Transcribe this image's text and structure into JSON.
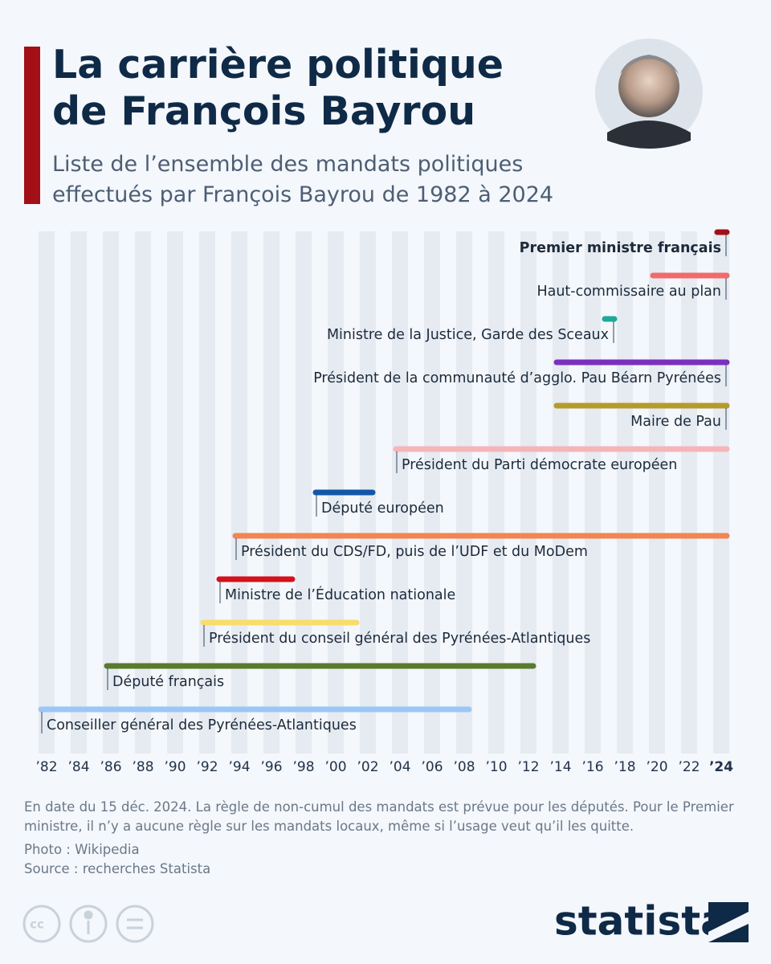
{
  "brand": "statista",
  "chart_data": {
    "type": "timeline",
    "title": "La carrière politique de François Bayrou",
    "subtitle": "Liste de l’ensemble des mandats politiques effectués par François Bayrou de 1982 à 2024",
    "xlim": [
      1981.5,
      2024.5
    ],
    "xticks": [
      {
        "value": 1982,
        "label": "’82"
      },
      {
        "value": 1984,
        "label": "’84"
      },
      {
        "value": 1986,
        "label": "’86"
      },
      {
        "value": 1988,
        "label": "’88"
      },
      {
        "value": 1990,
        "label": "’90"
      },
      {
        "value": 1992,
        "label": "’92"
      },
      {
        "value": 1994,
        "label": "’94"
      },
      {
        "value": 1996,
        "label": "’96"
      },
      {
        "value": 1998,
        "label": "’98"
      },
      {
        "value": 2000,
        "label": "’00"
      },
      {
        "value": 2002,
        "label": "’02"
      },
      {
        "value": 2004,
        "label": "’04"
      },
      {
        "value": 2006,
        "label": "’06"
      },
      {
        "value": 2008,
        "label": "’08"
      },
      {
        "value": 2010,
        "label": "’10"
      },
      {
        "value": 2012,
        "label": "’12"
      },
      {
        "value": 2014,
        "label": "’14"
      },
      {
        "value": 2016,
        "label": "’16"
      },
      {
        "value": 2018,
        "label": "’18"
      },
      {
        "value": 2020,
        "label": "’20"
      },
      {
        "value": 2022,
        "label": "’22"
      },
      {
        "value": 2024,
        "label": "’24"
      }
    ],
    "grid": true,
    "tasks": [
      {
        "name": "Premier ministre français",
        "start": 2023.6,
        "end": 2024.5,
        "color": "#a30f17"
      },
      {
        "name": "Haut-commissaire au plan",
        "start": 2019.6,
        "end": 2024.5,
        "color": "#f26a6a"
      },
      {
        "name": "Ministre de la Justice, Garde des Sceaux",
        "start": 2016.6,
        "end": 2017.5,
        "color": "#1fa89a"
      },
      {
        "name": "Président de la communauté d’agglo. Pau Béarn Pyrénées",
        "start": 2013.6,
        "end": 2024.5,
        "color": "#7b2fbe"
      },
      {
        "name": "Maire de Pau",
        "start": 2013.6,
        "end": 2024.5,
        "color": "#b59b2d"
      },
      {
        "name": "Président du Parti démocrate européen",
        "start": 2003.6,
        "end": 2024.5,
        "color": "#f5b5b8"
      },
      {
        "name": "Député européen",
        "start": 1998.6,
        "end": 2002.45,
        "color": "#1257a8"
      },
      {
        "name": "Président du CDS/FD, puis de l’UDF et du MoDem",
        "start": 1993.6,
        "end": 2024.5,
        "color": "#f28550"
      },
      {
        "name": "Ministre de l’Éducation nationale",
        "start": 1992.6,
        "end": 1997.45,
        "color": "#d3121c"
      },
      {
        "name": "Président du conseil général des Pyrénées-Atlantiques",
        "start": 1991.6,
        "end": 2001.45,
        "color": "#f9dd6a"
      },
      {
        "name": "Député français",
        "start": 1985.6,
        "end": 2012.45,
        "color": "#5a7a2c"
      },
      {
        "name": "Conseiller général des Pyrénées-Atlantiques",
        "start": 1981.5,
        "end": 2008.45,
        "color": "#9ac8f5"
      }
    ],
    "note": "En date du 15 déc. 2024. La règle de non-cumul des mandats est prévue pour les députés. Pour le Premier ministre, il n’y a aucune règle sur les mandats locaux, même si l’usage veut qu’il les quitte.",
    "photo_credit": "Photo : Wikipedia",
    "source": "Source : recherches Statista"
  }
}
